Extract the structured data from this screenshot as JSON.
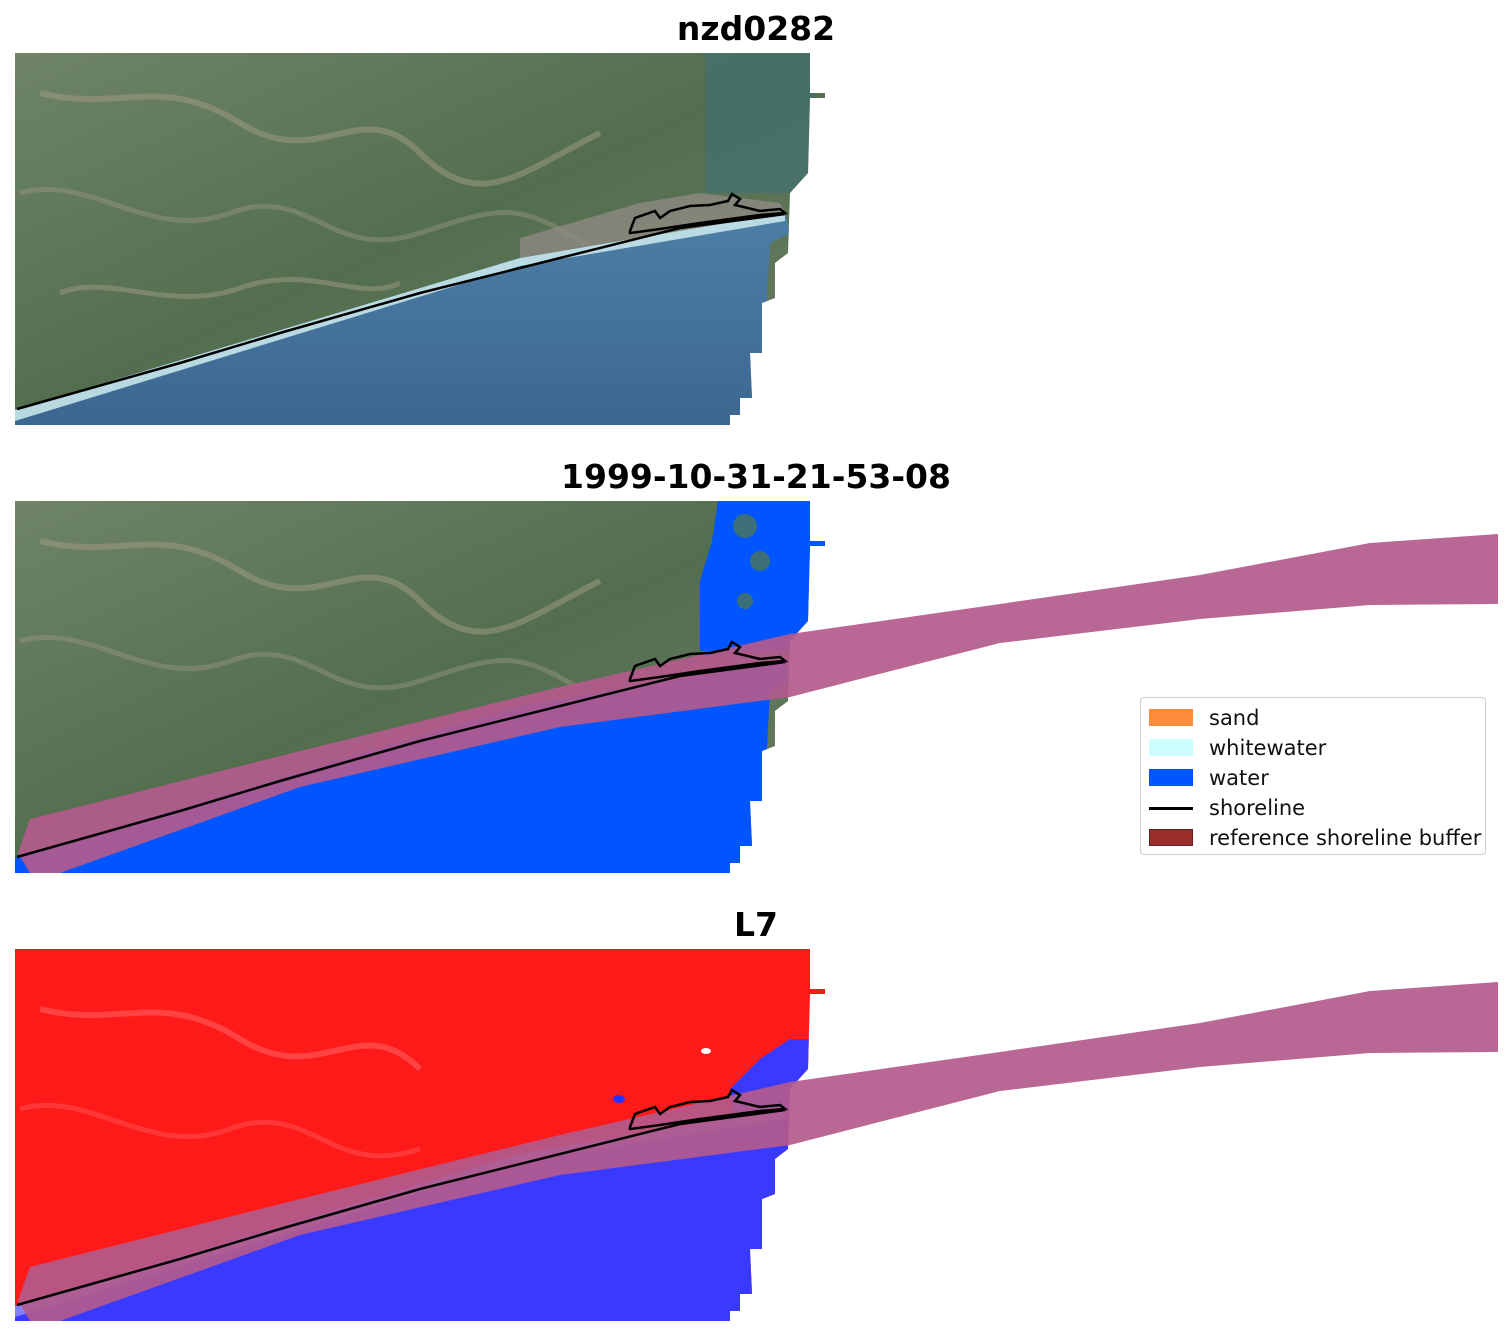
{
  "panels": [
    {
      "title": "nzd0282"
    },
    {
      "title": "1999-10-31-21-53-08"
    },
    {
      "title": "L7"
    }
  ],
  "legend": {
    "items": [
      {
        "label": "sand",
        "color": "#ff8c3a",
        "kind": "patch"
      },
      {
        "label": "whitewater",
        "color": "#ccffff",
        "kind": "patch"
      },
      {
        "label": "water",
        "color": "#0055ff",
        "kind": "patch"
      },
      {
        "label": "shoreline",
        "color": "#000000",
        "kind": "line"
      },
      {
        "label": "reference shoreline buffer",
        "color": "#9b2d2d",
        "kind": "patch"
      }
    ]
  },
  "colors": {
    "land_rgb": "#5e7656",
    "sea_rgb": "#3f6f99",
    "surf": "#a6d8e0",
    "water_class": "#0055ff",
    "buffer": "#b35a8c",
    "index_land": "#ff1a1a",
    "index_water": "#3a3aff"
  }
}
